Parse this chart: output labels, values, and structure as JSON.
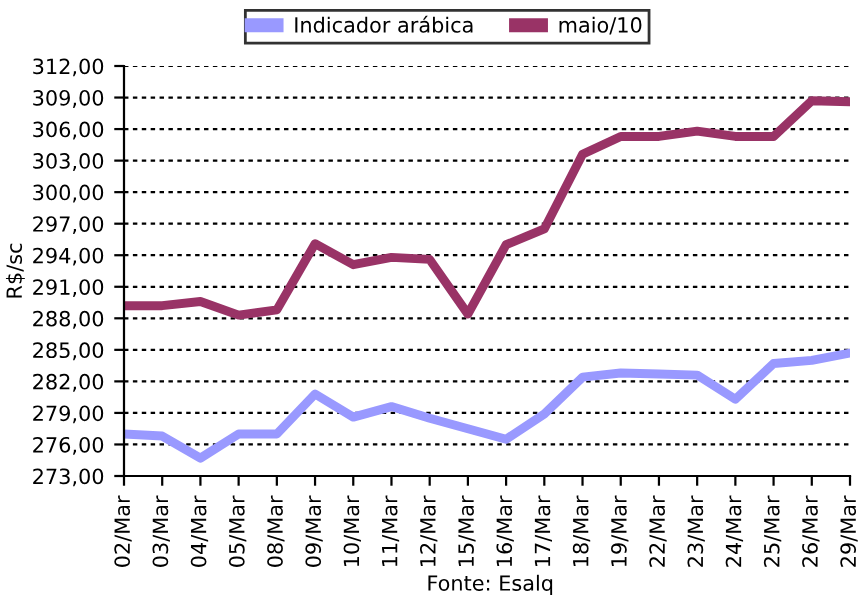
{
  "chart_data": {
    "type": "line",
    "ylabel": "R$/sc",
    "annotations": [
      "Fonte: Esalq"
    ],
    "categories": [
      "02/Mar",
      "03/Mar",
      "04/Mar",
      "05/Mar",
      "08/Mar",
      "09/Mar",
      "10/Mar",
      "11/Mar",
      "12/Mar",
      "15/Mar",
      "16/Mar",
      "17/Mar",
      "18/Mar",
      "19/Mar",
      "22/Mar",
      "23/Mar",
      "24/Mar",
      "25/Mar",
      "26/Mar",
      "29/Mar"
    ],
    "series": [
      {
        "name": "Indicador arábica",
        "color": "#9999ff",
        "values": [
          277.0,
          276.8,
          274.7,
          277.0,
          277.0,
          280.8,
          278.6,
          279.6,
          278.5,
          277.5,
          276.5,
          278.9,
          282.4,
          282.8,
          282.7,
          282.6,
          280.3,
          283.7,
          284.0,
          284.7
        ]
      },
      {
        "name": "maio/10",
        "color": "#993366",
        "values": [
          289.2,
          289.2,
          289.6,
          288.3,
          288.8,
          295.1,
          293.1,
          293.8,
          293.6,
          288.4,
          295.0,
          296.5,
          303.6,
          305.3,
          305.3,
          305.8,
          305.3,
          305.3,
          308.7,
          308.6
        ]
      }
    ],
    "ylim": [
      273,
      312
    ],
    "yticks": [
      {
        "value": 273,
        "label": "273,00"
      },
      {
        "value": 276,
        "label": "276,00"
      },
      {
        "value": 279,
        "label": "279,00"
      },
      {
        "value": 282,
        "label": "282,00"
      },
      {
        "value": 285,
        "label": "285,00"
      },
      {
        "value": 288,
        "label": "288,00"
      },
      {
        "value": 291,
        "label": "291,00"
      },
      {
        "value": 294,
        "label": "294,00"
      },
      {
        "value": 297,
        "label": "297,00"
      },
      {
        "value": 300,
        "label": "300,00"
      },
      {
        "value": 303,
        "label": "303,00"
      },
      {
        "value": 306,
        "label": "306,00"
      },
      {
        "value": 309,
        "label": "309,00"
      },
      {
        "value": 312,
        "label": "312,00"
      }
    ],
    "grid": "y",
    "legend": "top",
    "marker": "none",
    "line_style": "solid"
  }
}
